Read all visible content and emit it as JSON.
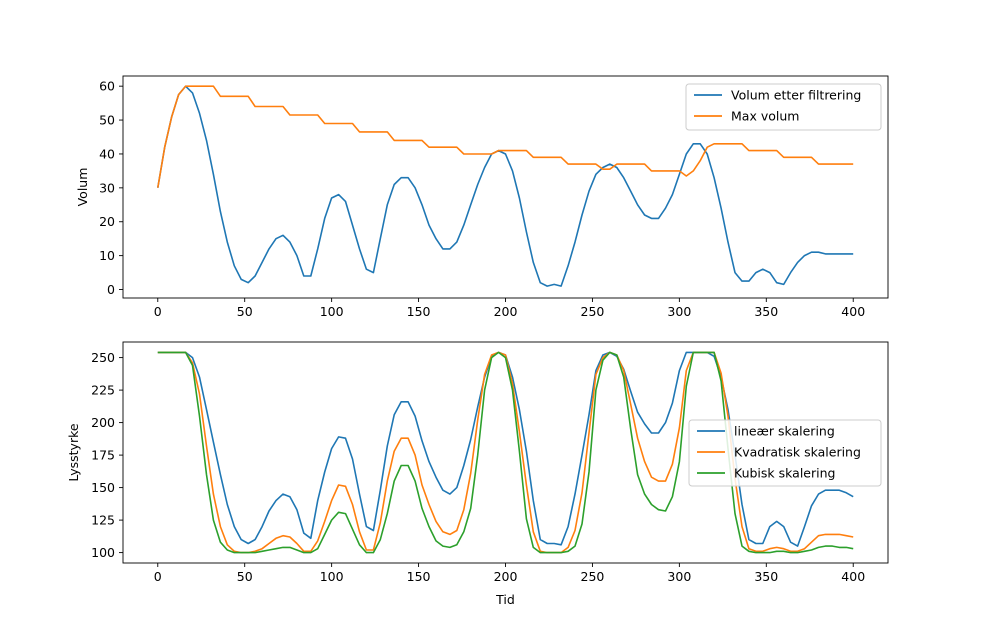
{
  "chart_data": [
    {
      "type": "line",
      "title": "",
      "xlabel": "",
      "ylabel": "Volum",
      "xlim": [
        -20,
        420
      ],
      "ylim": [
        -2.5,
        63
      ],
      "xticks": [
        0,
        50,
        100,
        150,
        200,
        250,
        300,
        350,
        400
      ],
      "yticks": [
        0,
        10,
        20,
        30,
        40,
        50,
        60
      ],
      "xtick_labels": [
        "0",
        "50",
        "100",
        "150",
        "200",
        "250",
        "300",
        "350",
        "400"
      ],
      "ytick_labels": [
        "0",
        "10",
        "20",
        "30",
        "40",
        "50",
        "60"
      ],
      "legend_position": "top-right",
      "grid": false,
      "x": [
        0,
        4,
        8,
        12,
        16,
        20,
        24,
        28,
        32,
        36,
        40,
        44,
        48,
        52,
        56,
        60,
        64,
        68,
        72,
        76,
        80,
        84,
        88,
        92,
        96,
        100,
        104,
        108,
        112,
        116,
        120,
        124,
        128,
        132,
        136,
        140,
        144,
        148,
        152,
        156,
        160,
        164,
        168,
        172,
        176,
        180,
        184,
        188,
        192,
        196,
        200,
        204,
        208,
        212,
        216,
        220,
        224,
        228,
        232,
        236,
        240,
        244,
        248,
        252,
        256,
        260,
        264,
        268,
        272,
        276,
        280,
        284,
        288,
        292,
        296,
        300,
        304,
        308,
        312,
        316,
        320,
        324,
        328,
        332,
        336,
        340,
        344,
        348,
        352,
        356,
        360,
        364,
        368,
        372,
        376,
        380,
        384,
        388,
        392,
        396,
        400
      ],
      "series": [
        {
          "name": "Volum etter filtrering",
          "color": "#1f77b4",
          "values": [
            30,
            42,
            51,
            57.5,
            60,
            58,
            52,
            44,
            34,
            23,
            14,
            7,
            3,
            2,
            4,
            8,
            12,
            15,
            16,
            14,
            10,
            4,
            4,
            12,
            21,
            27,
            28,
            26,
            19,
            12,
            6,
            5,
            15,
            25,
            31,
            33,
            33,
            30,
            25,
            19,
            15,
            12,
            12,
            14,
            19,
            25,
            31,
            36,
            40,
            41,
            40,
            35,
            27,
            17,
            8,
            2,
            1,
            1.5,
            1,
            7,
            14,
            22,
            29,
            34,
            36,
            37,
            36,
            33,
            29,
            25,
            22,
            21,
            21,
            24,
            28,
            34,
            40,
            43,
            43,
            40,
            33,
            24,
            14,
            5,
            2.5,
            2.5,
            5,
            6,
            5,
            2,
            1.5,
            5,
            8,
            10,
            11,
            11,
            10.5,
            10.5,
            10.5,
            10.5,
            10.5
          ]
        },
        {
          "name": "Max volum",
          "color": "#ff7f0e",
          "values": [
            30,
            42,
            51,
            57.5,
            60,
            60,
            60,
            60,
            60,
            57,
            57,
            57,
            57,
            57,
            54,
            54,
            54,
            54,
            54,
            51.5,
            51.5,
            51.5,
            51.5,
            51.5,
            49,
            49,
            49,
            49,
            49,
            46.5,
            46.5,
            46.5,
            46.5,
            46.5,
            44,
            44,
            44,
            44,
            44,
            42,
            42,
            42,
            42,
            42,
            40,
            40,
            40,
            40,
            40,
            41,
            41,
            41,
            41,
            41,
            39,
            39,
            39,
            39,
            39,
            37,
            37,
            37,
            37,
            37,
            35.5,
            35.5,
            37,
            37,
            37,
            37,
            37,
            35,
            35,
            35,
            35,
            35,
            33.5,
            35,
            38,
            42,
            43,
            43,
            43,
            43,
            43,
            41,
            41,
            41,
            41,
            41,
            39,
            39,
            39,
            39,
            39,
            37,
            37,
            37,
            37,
            37,
            37
          ]
        }
      ]
    },
    {
      "type": "line",
      "title": "",
      "xlabel": "Tid",
      "ylabel": "Lysstyrke",
      "xlim": [
        -20,
        420
      ],
      "ylim": [
        92,
        262
      ],
      "xticks": [
        0,
        50,
        100,
        150,
        200,
        250,
        300,
        350,
        400
      ],
      "yticks": [
        100,
        125,
        150,
        175,
        200,
        225,
        250
      ],
      "xtick_labels": [
        "0",
        "50",
        "100",
        "150",
        "200",
        "250",
        "300",
        "350",
        "400"
      ],
      "ytick_labels": [
        "100",
        "125",
        "150",
        "175",
        "200",
        "225",
        "250"
      ],
      "legend_position": "center-right",
      "grid": false,
      "x": [
        0,
        4,
        8,
        12,
        16,
        20,
        24,
        28,
        32,
        36,
        40,
        44,
        48,
        52,
        56,
        60,
        64,
        68,
        72,
        76,
        80,
        84,
        88,
        92,
        96,
        100,
        104,
        108,
        112,
        116,
        120,
        124,
        128,
        132,
        136,
        140,
        144,
        148,
        152,
        156,
        160,
        164,
        168,
        172,
        176,
        180,
        184,
        188,
        192,
        196,
        200,
        204,
        208,
        212,
        216,
        220,
        224,
        228,
        232,
        236,
        240,
        244,
        248,
        252,
        256,
        260,
        264,
        268,
        272,
        276,
        280,
        284,
        288,
        292,
        296,
        300,
        304,
        308,
        312,
        316,
        320,
        324,
        328,
        332,
        336,
        340,
        344,
        348,
        352,
        356,
        360,
        364,
        368,
        372,
        376,
        380,
        384,
        388,
        392,
        396,
        400
      ],
      "series": [
        {
          "name": "lineær skalering",
          "color": "#1f77b4",
          "values": [
            254,
            254,
            254,
            254,
            254,
            250,
            235,
            210,
            185,
            160,
            137,
            120,
            110,
            107,
            110,
            120,
            132,
            140,
            145,
            143,
            133,
            115,
            111,
            140,
            162,
            180,
            189,
            188,
            172,
            145,
            120,
            117,
            148,
            182,
            206,
            216,
            216,
            205,
            186,
            170,
            158,
            148,
            145,
            150,
            167,
            187,
            212,
            235,
            251,
            254,
            252,
            235,
            210,
            178,
            140,
            110,
            107,
            107,
            106,
            120,
            145,
            175,
            206,
            240,
            252,
            254,
            251,
            241,
            224,
            208,
            199,
            192,
            192,
            200,
            215,
            240,
            254,
            254,
            254,
            254,
            251,
            235,
            210,
            175,
            137,
            110,
            107,
            107,
            120,
            124,
            120,
            108,
            105,
            120,
            136,
            145,
            148,
            148,
            148,
            146,
            143
          ]
        },
        {
          "name": "Kvadratisk skalering",
          "color": "#ff7f0e",
          "values": [
            254,
            254,
            254,
            254,
            254,
            246,
            222,
            182,
            145,
            120,
            106,
            101,
            100,
            100,
            101,
            103,
            107,
            111,
            113,
            112,
            107,
            101,
            101,
            109,
            124,
            140,
            152,
            151,
            137,
            116,
            102,
            102,
            123,
            155,
            178,
            188,
            188,
            175,
            152,
            137,
            124,
            116,
            114,
            117,
            133,
            161,
            202,
            237,
            252,
            254,
            252,
            230,
            193,
            152,
            116,
            101,
            100,
            100,
            100,
            104,
            117,
            146,
            192,
            237,
            250,
            254,
            252,
            240,
            214,
            188,
            170,
            158,
            155,
            155,
            168,
            196,
            240,
            254,
            254,
            254,
            254,
            238,
            205,
            157,
            120,
            103,
            101,
            101,
            103,
            104,
            103,
            101,
            101,
            103,
            108,
            113,
            114,
            114,
            114,
            113,
            112
          ]
        },
        {
          "name": "Kubisk skalering",
          "color": "#2ca02c",
          "values": [
            254,
            254,
            254,
            254,
            254,
            244,
            205,
            160,
            125,
            108,
            102,
            100,
            100,
            100,
            100,
            101,
            102,
            103,
            104,
            104,
            102,
            100,
            100,
            103,
            114,
            125,
            131,
            130,
            118,
            106,
            100,
            100,
            110,
            130,
            155,
            167,
            167,
            155,
            134,
            120,
            109,
            105,
            104,
            106,
            116,
            134,
            175,
            225,
            250,
            254,
            250,
            225,
            178,
            126,
            104,
            100,
            100,
            100,
            100,
            101,
            105,
            122,
            162,
            225,
            248,
            254,
            252,
            235,
            195,
            160,
            145,
            137,
            133,
            132,
            143,
            170,
            228,
            254,
            254,
            254,
            254,
            232,
            180,
            130,
            105,
            101,
            100,
            100,
            100,
            101,
            101,
            100,
            100,
            101,
            102,
            104,
            105,
            105,
            104,
            104,
            103
          ]
        }
      ]
    }
  ]
}
